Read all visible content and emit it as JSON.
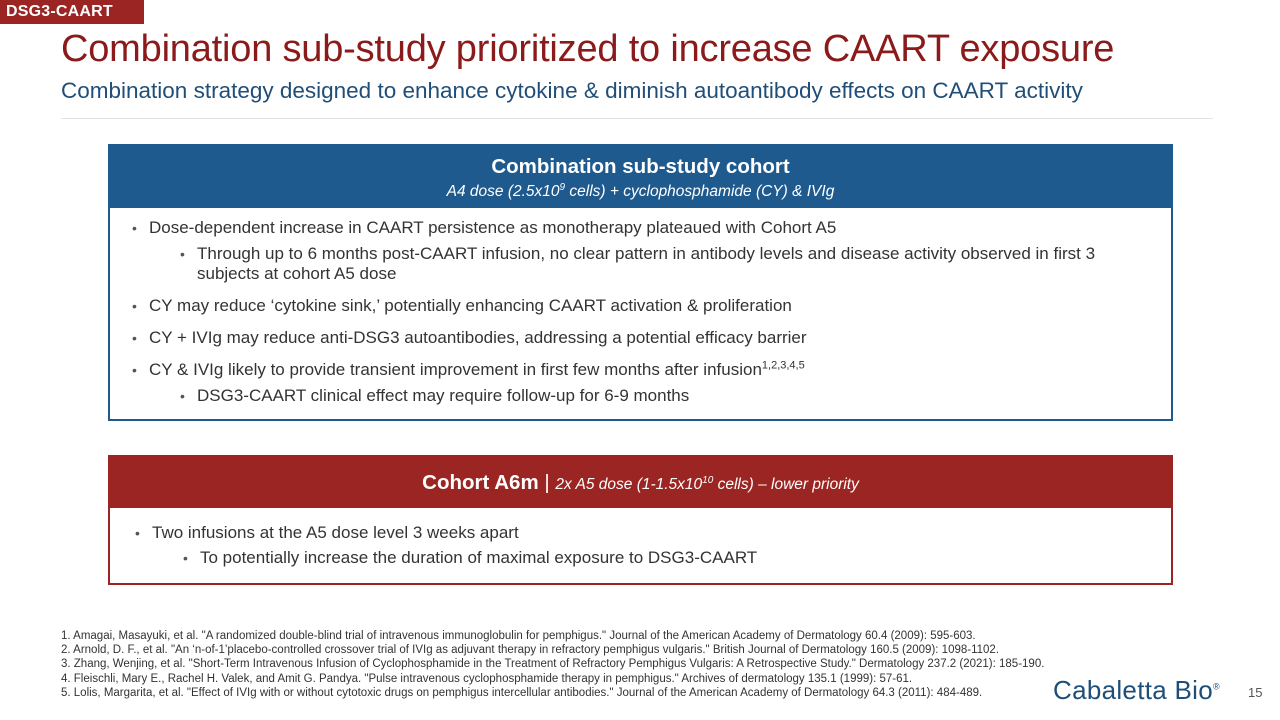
{
  "tag": "DSG3-CAART",
  "title": "Combination sub-study prioritized to increase CAART exposure",
  "subtitle": "Combination strategy designed to enhance cytokine & diminish autoantibody effects on CAART activity",
  "box1": {
    "heading": "Combination sub-study cohort",
    "sub_pre": "A4 dose (2.5x10",
    "sub_sup": "9",
    "sub_post": " cells) + cyclophosphamide (CY) & IVIg",
    "bullets": [
      "Dose-dependent increase in CAART persistence as monotherapy plateaued with Cohort A5",
      "Through up to 6 months post-CAART infusion, no clear pattern in antibody levels and disease activity observed in first 3 subjects at cohort A5 dose",
      "CY may reduce ‘cytokine sink,’ potentially enhancing CAART activation & proliferation",
      "CY + IVIg may reduce anti-DSG3 autoantibodies, addressing a potential efficacy barrier",
      "CY & IVIg likely to provide transient improvement in first few months after infusion",
      "DSG3-CAART clinical effect may require follow-up for 6-9 months"
    ],
    "bullet5_sup": "1,2,3,4,5"
  },
  "box2": {
    "heading": "Cohort A6m",
    "separator": " | ",
    "sub_pre": "2x A5 dose  (1-1.5x10",
    "sub_sup": "10",
    "sub_post": " cells) – lower priority",
    "bullets": [
      "Two infusions at the A5 dose level 3 weeks apart",
      "To potentially increase the duration of maximal exposure to DSG3-CAART"
    ]
  },
  "references": [
    "1. Amagai, Masayuki, et al. \"A randomized double-blind trial of intravenous immunoglobulin for pemphigus.\" Journal of the American Academy of Dermatology 60.4 (2009): 595-603.",
    "2. Arnold, D. F., et al. \"An ‘n-of-1’placebo-controlled crossover trial of IVIg as adjuvant therapy in refractory pemphigus vulgaris.\" British Journal of Dermatology 160.5 (2009): 1098-1102.",
    "3. Zhang, Wenjing, et al. \"Short-Term Intravenous Infusion of Cyclophosphamide in the Treatment of Refractory Pemphigus Vulgaris: A Retrospective Study.\" Dermatology 237.2 (2021): 185-190.",
    "4. Fleischli, Mary E., Rachel H. Valek, and Amit G. Pandya. \"Pulse intravenous cyclophosphamide therapy in pemphigus.\" Archives of dermatology 135.1 (1999): 57-61.",
    "5. Lolis, Margarita, et al. \"Effect of IVIg with or without cytotoxic drugs on pemphigus intercellular antibodies.\" Journal of the American Academy of Dermatology 64.3 (2011): 484-489."
  ],
  "logo": {
    "text": "Cabaletta Bio",
    "mark": "®"
  },
  "page_number": "15",
  "colors": {
    "accent_red": "#9b2522",
    "title_red": "#8b1a1a",
    "accent_blue": "#1e5a8e",
    "subtitle_blue": "#1f4e79"
  }
}
